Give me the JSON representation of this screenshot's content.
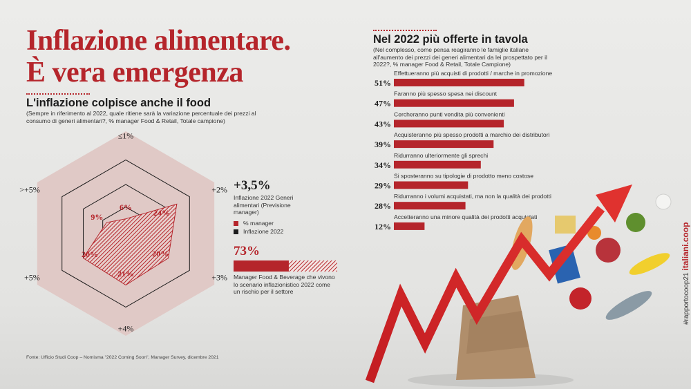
{
  "header": {
    "title": "Inflazione alimentare.\nÈ vera emergenza"
  },
  "left_section": {
    "title": "L'inflazione colpisce anche il food",
    "subtitle": "(Sempre in riferimento al 2022, quale ritiene sarà la variazione percentuale dei prezzi al consumo di generi alimentari?, % manager Food & Retail, Totale campione)"
  },
  "inflation_box": {
    "value": "+3,5%",
    "label": "Inflazione 2022 Generi alimentari (Previsione manager)"
  },
  "legend": [
    {
      "label": "% manager",
      "color": "#b5252b"
    },
    {
      "label": "Inflazione 2022",
      "color": "#1c1c1c"
    }
  ],
  "risk": {
    "value": "73%",
    "fraction": 0.73,
    "label": "Manager Food & Beverage che vivono lo scenario inflazionistico 2022 come un rischio per il settore"
  },
  "right_section": {
    "title": "Nel 2022 più offerte in tavola",
    "subtitle": "(Nel complesso, come pensa reagiranno le famiglie italiane all'aumento dei prezzi dei generi alimentari da lei prospettato per il 2022?, % manager Food & Retail, Totale Campione)"
  },
  "source": "Fonte: Ufficio Studi Coop – Nomisma \"2022 Coming Soon\", Manager Survey, dicembre 2021",
  "side_tag": {
    "hashtag": "#rapportocoop21",
    "brand": "italiani.coop"
  },
  "colors": {
    "accent": "#b5252b",
    "hex_fill": "#e0c9c6",
    "dark": "#1c1c1c"
  },
  "chart_data": [
    {
      "type": "radar",
      "categories": [
        "≤1%",
        "+2%",
        "+3%",
        "+4%",
        "+5%",
        ">+5%"
      ],
      "series": [
        {
          "name": "% manager",
          "values": [
            6,
            24,
            20,
            21,
            20,
            9
          ]
        }
      ],
      "value_labels": [
        "6%",
        "24%",
        "20%",
        "21%",
        "20%",
        "9%"
      ]
    },
    {
      "type": "bar",
      "orientation": "horizontal",
      "categories": [
        "Effettueranno più acquisti di prodotti / marche in promozione",
        "Faranno più spesso spesa nei discount",
        "Cercheranno punti vendita più convenienti",
        "Acquisteranno più spesso prodotti a marchio dei distributori",
        "Ridurranno ulteriormente gli sprechi",
        "Si sposteranno su tipologie di prodotto meno costose",
        "Ridurranno i volumi acquistati, ma non la qualità dei prodotti",
        "Accetteranno una minore qualità dei prodotti acquistati"
      ],
      "values": [
        51,
        47,
        43,
        39,
        34,
        29,
        28,
        12
      ],
      "value_labels": [
        "51%",
        "47%",
        "43%",
        "39%",
        "34%",
        "29%",
        "28%",
        "12%"
      ]
    }
  ]
}
